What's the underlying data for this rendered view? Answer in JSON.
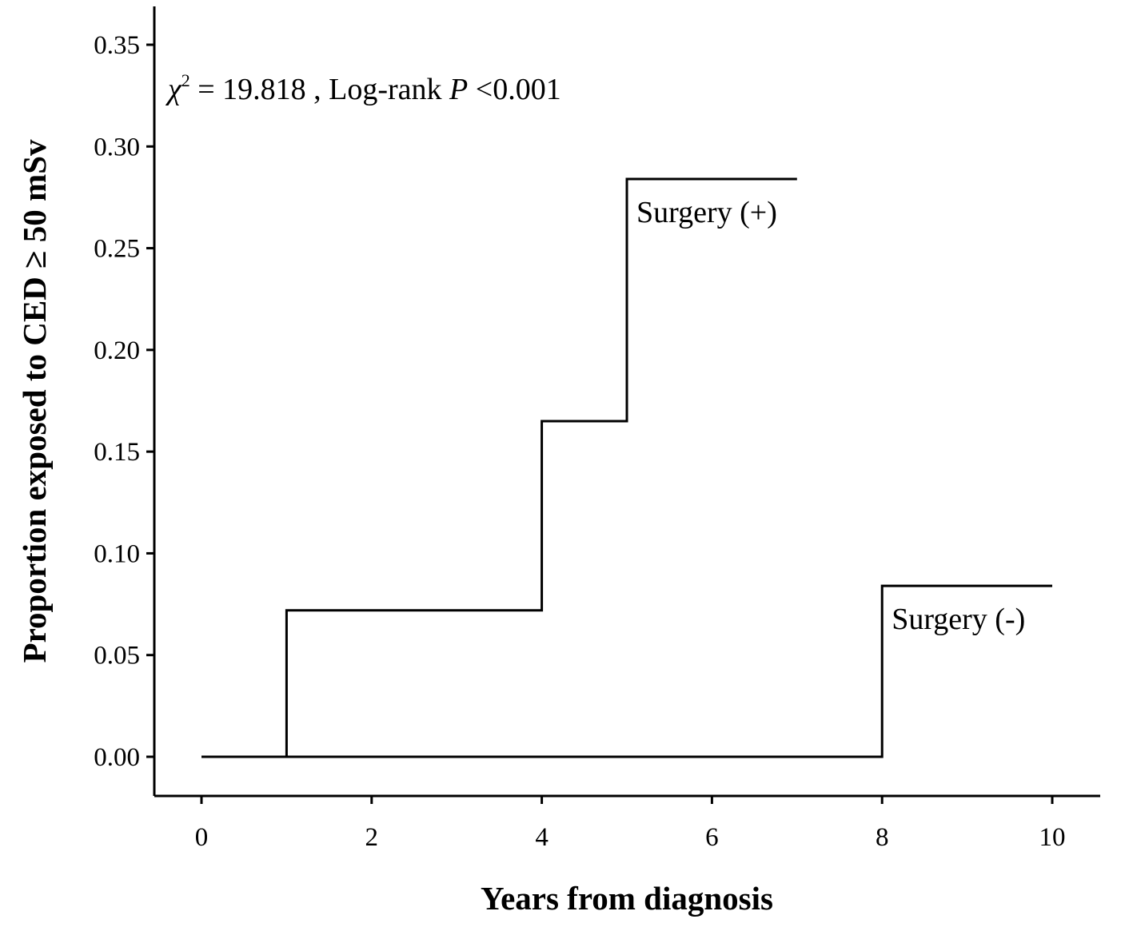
{
  "chart_data": {
    "type": "line",
    "step": true,
    "xlabel": "Years from diagnosis",
    "ylabel": "Proportion exposed to CED ≥ 50 mSv",
    "xlim": [
      -0.55,
      11.5
    ],
    "ylim": [
      -0.02,
      0.365
    ],
    "xticks": [
      0,
      2,
      4,
      6,
      8,
      10
    ],
    "xtick_labels": [
      "0",
      "2",
      "4",
      "6",
      "8",
      "10"
    ],
    "yticks": [
      0.0,
      0.05,
      0.1,
      0.15,
      0.2,
      0.25,
      0.3,
      0.35
    ],
    "ytick_labels": [
      "0.00",
      "0.05",
      "0.10",
      "0.15",
      "0.20",
      "0.25",
      "0.30",
      "0.35"
    ],
    "grid": false,
    "annotation": {
      "chi": "χ",
      "sup": "2",
      "mid": " = 19.818 , Log-rank ",
      "p": "P",
      "tail": " <0.001"
    },
    "series": [
      {
        "name": "Surgery (+)",
        "x": [
          0,
          1,
          4,
          5,
          7
        ],
        "y": [
          0.0,
          0.072,
          0.165,
          0.284,
          0.284
        ]
      },
      {
        "name": "Surgery (-)",
        "x": [
          0,
          8,
          10
        ],
        "y": [
          0.0,
          0.084,
          0.084
        ]
      }
    ],
    "colors": {
      "line": "#000000",
      "axis": "#000000"
    }
  }
}
